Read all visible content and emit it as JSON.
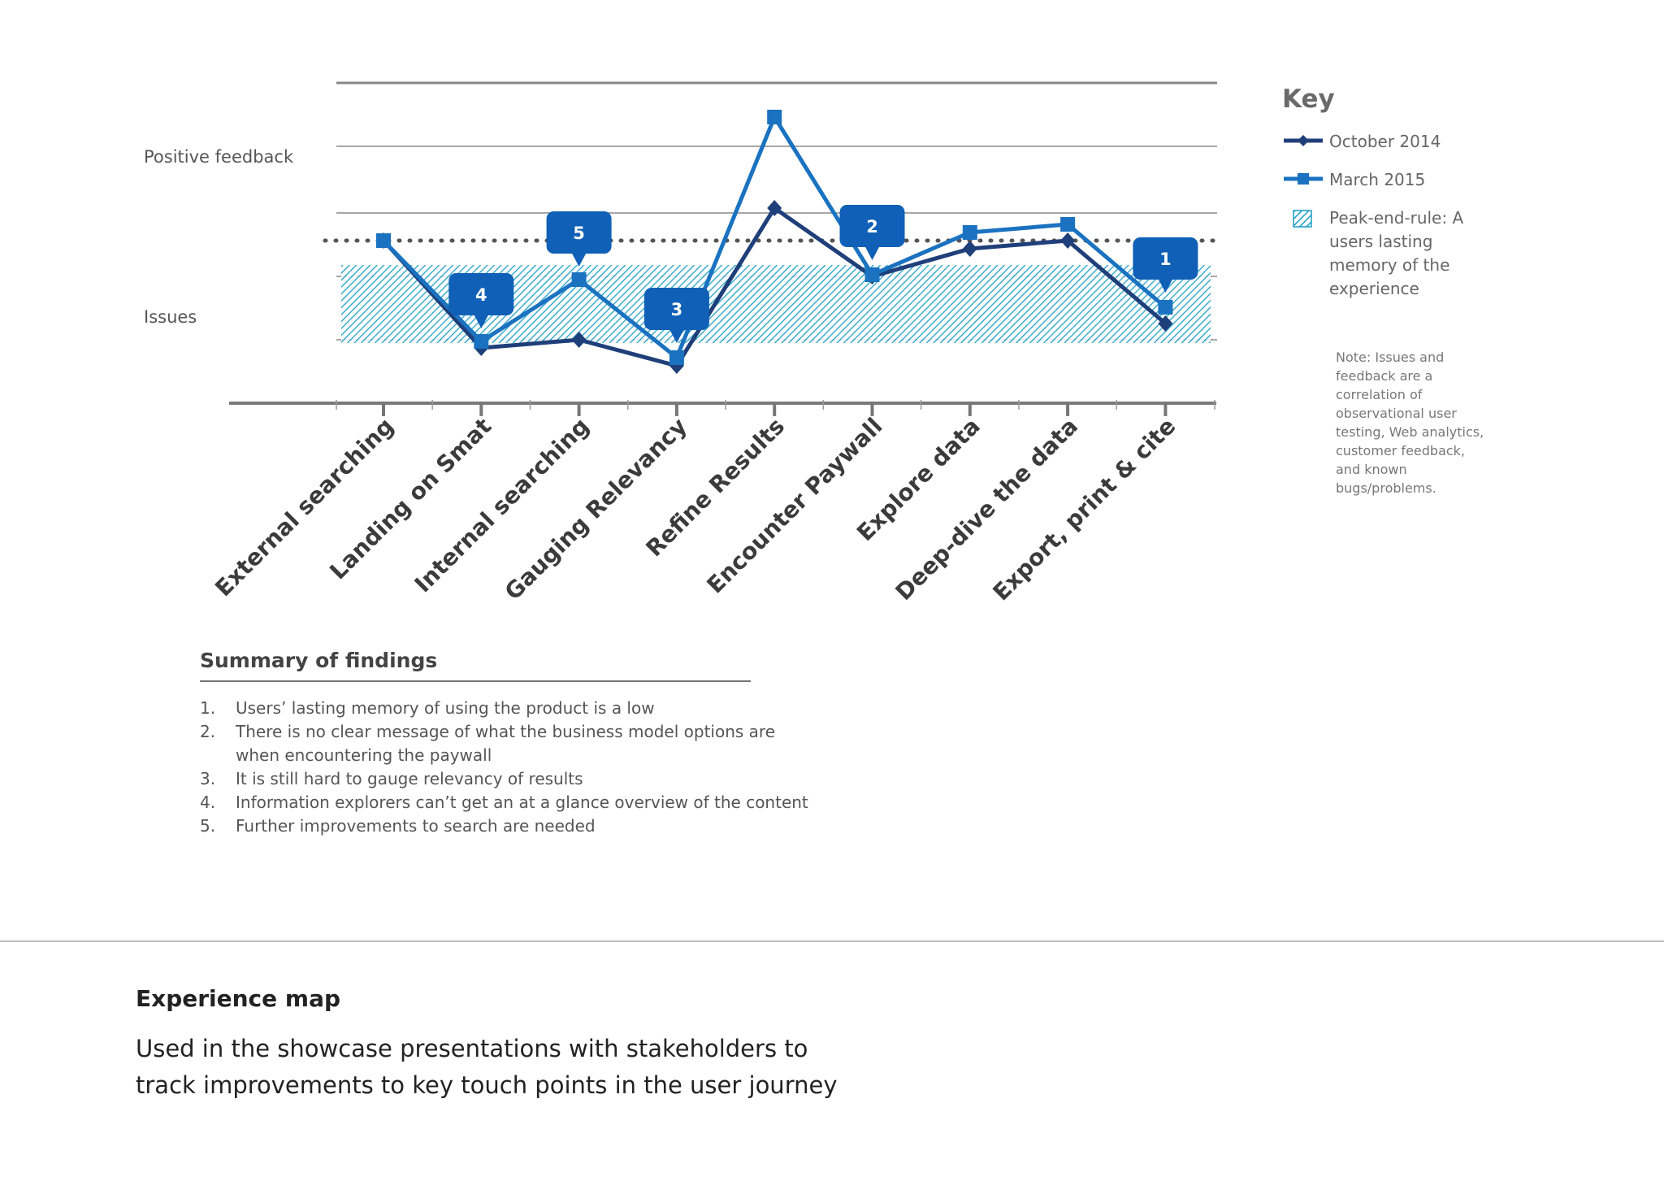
{
  "chart_data": {
    "type": "line",
    "title": "",
    "xlabel": "",
    "ylabel": "",
    "y_axis_labels": [
      "Positive feedback",
      "Issues"
    ],
    "categories": [
      "External searching",
      "Landing on Smat",
      "Internal searching",
      "Gauging Relevancy",
      "Refine Results",
      "Encounter Paywall",
      "Explore data",
      "Deep-dive the data",
      "Export, print & cite"
    ],
    "series": [
      {
        "name": "October 2014",
        "marker": "diamond",
        "color": "#1f3f7a",
        "values": [
          5.0,
          1.7,
          1.95,
          1.15,
          6.0,
          3.9,
          4.75,
          5.0,
          2.45
        ]
      },
      {
        "name": "March 2015",
        "marker": "square",
        "color": "#1a72c0",
        "values": [
          5.0,
          1.9,
          3.8,
          1.4,
          8.8,
          3.95,
          5.25,
          5.5,
          2.95
        ]
      }
    ],
    "ylim": [
      0,
      10
    ],
    "grid": true,
    "reference_line": {
      "value": 5.0,
      "style": "dotted"
    },
    "shaded_band": {
      "from": 1.85,
      "to": 4.25,
      "label": "Peak-end-rule: A users lasting memory of the experience"
    },
    "callouts": [
      {
        "label": "5",
        "category_index": 2
      },
      {
        "label": "4",
        "category_index": 1
      },
      {
        "label": "3",
        "category_index": 3
      },
      {
        "label": "2",
        "category_index": 5
      },
      {
        "label": "1",
        "category_index": 8
      }
    ],
    "legend_position": "right",
    "callout_color": "#0f60b6",
    "band_color": "#1a9ec6"
  },
  "key": {
    "title": "Key",
    "oct_label": "October 2014",
    "mar_label": "March 2015",
    "peak_label": "Peak-end-rule: A users lasting memory of the experience"
  },
  "note": "Note: Issues and feedback are a correlation of observational user testing, Web analytics, customer feedback, and known bugs/problems.",
  "summary": {
    "title": "Summary of findings",
    "items": [
      {
        "num": "1.",
        "text": "Users’ lasting memory of using the product is a low"
      },
      {
        "num": "2.",
        "text": "There is no clear message of what the business model options are when encountering the paywall"
      },
      {
        "num": "3.",
        "text": "It is still hard to gauge relevancy of results"
      },
      {
        "num": "4.",
        "text": "Information explorers can’t get an at a glance overview of the content"
      },
      {
        "num": "5.",
        "text": "Further improvements to search are needed"
      }
    ]
  },
  "caption": {
    "title": "Experience map",
    "text": "Used in the showcase presentations with stakeholders to track improvements to key touch points in the user journey"
  }
}
